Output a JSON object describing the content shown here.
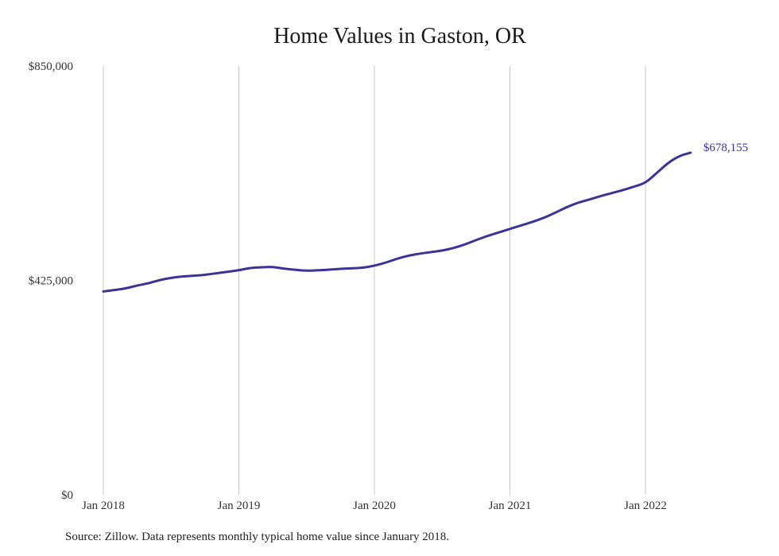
{
  "colors": {
    "line": "#3b3497",
    "grid": "#c8c8c8",
    "text": "#333333"
  },
  "source_note": "Source: Zillow. Data represents monthly typical home value since January 2018.",
  "chart_data": {
    "type": "line",
    "title": "Home Values in Gaston, OR",
    "xlabel": "",
    "ylabel": "",
    "ylim": [
      0,
      850000
    ],
    "y_ticks": [
      0,
      425000,
      850000
    ],
    "y_tick_labels": [
      "$0",
      "$425,000",
      "$850,000"
    ],
    "x_ticks": [
      "2018-01",
      "2019-01",
      "2020-01",
      "2021-01",
      "2022-01"
    ],
    "x_tick_labels": [
      "Jan 2018",
      "Jan 2019",
      "Jan 2020",
      "Jan 2021",
      "Jan 2022"
    ],
    "grid": {
      "vertical": true,
      "horizontal": false
    },
    "end_label": "$678,155",
    "series": [
      {
        "x": [
          "2018-01",
          "2018-02",
          "2018-03",
          "2018-04",
          "2018-05",
          "2018-06",
          "2018-07",
          "2018-08",
          "2018-09",
          "2018-10",
          "2018-11",
          "2018-12",
          "2019-01",
          "2019-02",
          "2019-03",
          "2019-04",
          "2019-05",
          "2019-06",
          "2019-07",
          "2019-08",
          "2019-09",
          "2019-10",
          "2019-11",
          "2019-12",
          "2020-01",
          "2020-02",
          "2020-03",
          "2020-04",
          "2020-05",
          "2020-06",
          "2020-07",
          "2020-08",
          "2020-09",
          "2020-10",
          "2020-11",
          "2020-12",
          "2021-01",
          "2021-02",
          "2021-03",
          "2021-04",
          "2021-05",
          "2021-06",
          "2021-07",
          "2021-08",
          "2021-09",
          "2021-10",
          "2021-11",
          "2021-12",
          "2022-01",
          "2022-02",
          "2022-03",
          "2022-04",
          "2022-05"
        ],
        "values": [
          403000,
          406000,
          409000,
          415000,
          419000,
          426000,
          430000,
          433000,
          434000,
          436000,
          439000,
          442000,
          445000,
          450000,
          451000,
          452000,
          448000,
          446000,
          444000,
          445000,
          446000,
          448000,
          449000,
          450000,
          454000,
          460000,
          468000,
          474000,
          478000,
          481000,
          484000,
          489000,
          496000,
          505000,
          513000,
          520000,
          527000,
          534000,
          541000,
          549000,
          559000,
          570000,
          579000,
          585000,
          592000,
          598000,
          604000,
          611000,
          618000,
          638000,
          658000,
          672000,
          678155
        ]
      }
    ]
  }
}
